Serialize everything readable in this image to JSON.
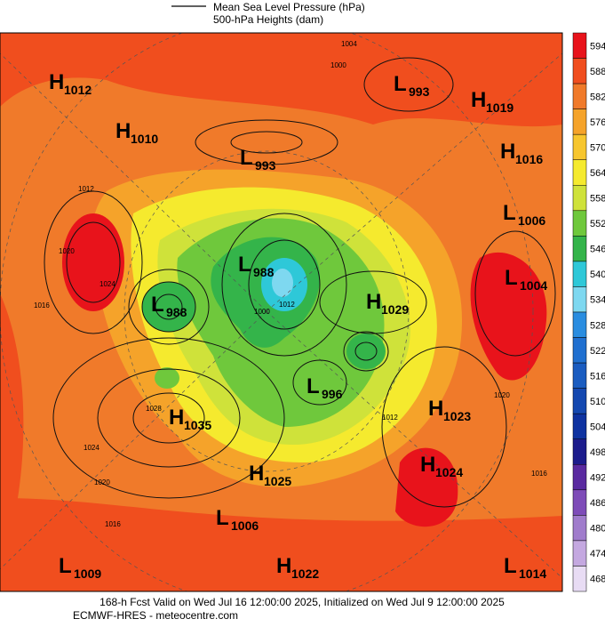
{
  "legend": {
    "items": [
      "Mean Sea Level Pressure (hPa)",
      "500-hPa Heights (dam)"
    ]
  },
  "colorbar": {
    "levels": [
      594,
      588,
      582,
      576,
      570,
      564,
      558,
      552,
      546,
      540,
      534,
      528,
      522,
      516,
      510,
      504,
      498,
      492,
      486,
      480,
      474,
      468
    ],
    "colors": [
      "#e8131b",
      "#f04e1e",
      "#f07a2a",
      "#f5a32a",
      "#f7c62e",
      "#f5ea2e",
      "#cfe23a",
      "#6fc83c",
      "#34b44a",
      "#2ec8d8",
      "#7ed8f0",
      "#2a8de0",
      "#2070d0",
      "#1a5cc0",
      "#1448b0",
      "#0e32a0",
      "#1c1c8c",
      "#5a2aa0",
      "#7e4cb8",
      "#a07ccc",
      "#c4a8e0",
      "#e8dcf4"
    ]
  },
  "centers": [
    {
      "type": "H",
      "value": 1012
    },
    {
      "type": "H",
      "value": 1010
    },
    {
      "type": "L",
      "value": 993
    },
    {
      "type": "H",
      "value": 1019
    },
    {
      "type": "L",
      "value": 993
    },
    {
      "type": "H",
      "value": 1016
    },
    {
      "type": "L",
      "value": 1006
    },
    {
      "type": "L",
      "value": 988
    },
    {
      "type": "L",
      "value": 1004
    },
    {
      "type": "L",
      "value": 988
    },
    {
      "type": "H",
      "value": 1029
    },
    {
      "type": "L",
      "value": 996
    },
    {
      "type": "H",
      "value": 1023
    },
    {
      "type": "H",
      "value": 1035
    },
    {
      "type": "H",
      "value": 1024
    },
    {
      "type": "H",
      "value": 1025
    },
    {
      "type": "L",
      "value": 1006
    },
    {
      "type": "L",
      "value": 1009
    },
    {
      "type": "H",
      "value": 1022
    },
    {
      "type": "L",
      "value": 1014
    }
  ],
  "isobar_labels": [
    1004,
    1000,
    1012,
    1020,
    1024,
    1016,
    1000,
    1012,
    1028,
    1024,
    1020,
    1016,
    1012,
    1020,
    1016
  ],
  "footer": {
    "line1": "168-h Fcst Valid on Wed Jul 16 12:00:00 2025, Initialized on Wed Jul  9 12:00:00 2025",
    "line2": "ECMWF-HRES  - meteocentre.com"
  }
}
